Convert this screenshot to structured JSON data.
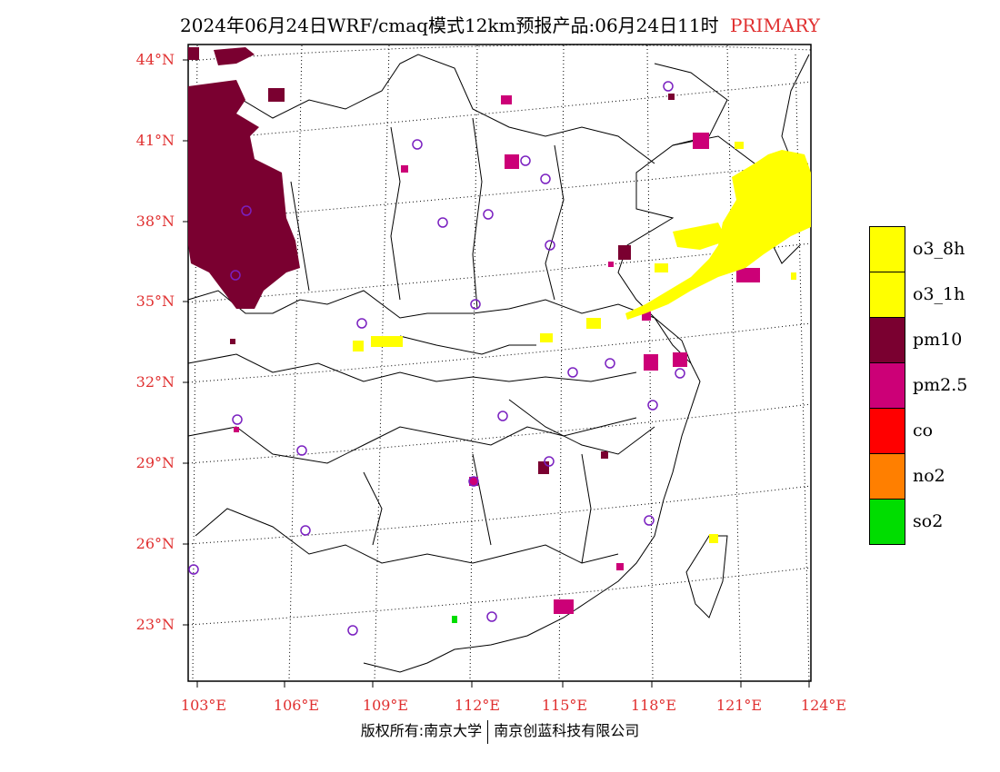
{
  "title": {
    "main": "2024年06月24日WRF/cmaq模式12km预报产品:06月24日11时",
    "tag": "PRIMARY"
  },
  "axes": {
    "lat_labels": [
      "44°N",
      "41°N",
      "38°N",
      "35°N",
      "32°N",
      "29°N",
      "26°N",
      "23°N"
    ],
    "lon_labels": [
      "103°E",
      "106°E",
      "109°E",
      "112°E",
      "115°E",
      "118°E",
      "121°E",
      "124°E"
    ]
  },
  "legend": [
    {
      "label": "o3_8h",
      "color": "#ffff00"
    },
    {
      "label": "o3_1h",
      "color": "#ffff00"
    },
    {
      "label": "pm10",
      "color": "#7a0030"
    },
    {
      "label": "pm2.5",
      "color": "#cc0077"
    },
    {
      "label": "co",
      "color": "#ff0000"
    },
    {
      "label": "no2",
      "color": "#ff7f00"
    },
    {
      "label": "so2",
      "color": "#00dd00"
    }
  ],
  "footer": {
    "left": "版权所有:南京大学",
    "right": "南京创蓝科技有限公司"
  }
}
